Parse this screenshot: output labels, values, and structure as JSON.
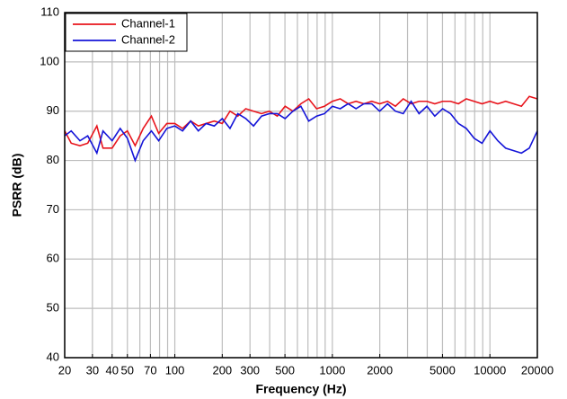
{
  "chart_data": {
    "type": "line",
    "xlabel": "Frequency (Hz)",
    "ylabel": "PSRR (dB)",
    "xscale": "log",
    "grid": true,
    "legend": "upper left",
    "xlim": [
      20,
      20000
    ],
    "ylim": [
      40,
      110
    ],
    "xticks": [
      20,
      30,
      40,
      50,
      70,
      100,
      200,
      300,
      500,
      1000,
      2000,
      5000,
      10000,
      20000
    ],
    "xgrid": [
      20,
      30,
      40,
      50,
      60,
      70,
      80,
      90,
      100,
      200,
      300,
      400,
      500,
      600,
      700,
      800,
      900,
      1000,
      2000,
      3000,
      4000,
      5000,
      6000,
      7000,
      8000,
      9000,
      10000,
      20000
    ],
    "yticks": [
      40,
      50,
      60,
      70,
      80,
      90,
      100,
      110
    ],
    "x": [
      20,
      22,
      25,
      28,
      32,
      35,
      40,
      45,
      50,
      56,
      63,
      71,
      79,
      89,
      100,
      112,
      126,
      141,
      158,
      178,
      200,
      224,
      251,
      282,
      316,
      355,
      398,
      447,
      501,
      562,
      631,
      708,
      794,
      891,
      1000,
      1122,
      1259,
      1413,
      1585,
      1778,
      1995,
      2239,
      2512,
      2818,
      3162,
      3548,
      3981,
      4467,
      5012,
      5623,
      6310,
      7079,
      7943,
      8913,
      10000,
      11220,
      12589,
      14125,
      15849,
      17783,
      20000
    ],
    "series": [
      {
        "name": "Channel-1",
        "color": "#e8141c",
        "values": [
          86,
          83.5,
          83,
          83.5,
          87,
          82.5,
          82.5,
          85,
          86,
          83,
          86.5,
          89,
          85.5,
          87.5,
          87.5,
          86.5,
          88,
          87,
          87.5,
          88,
          87.5,
          90,
          89,
          90.5,
          90,
          89.5,
          90,
          89,
          91,
          90,
          91.5,
          92.5,
          90.5,
          91,
          92,
          92.5,
          91.5,
          92,
          91.5,
          92,
          91.5,
          92,
          91,
          92.5,
          91.5,
          92,
          92,
          91.5,
          92,
          92,
          91.5,
          92.5,
          92,
          91.5,
          92,
          91.5,
          92,
          91.5,
          91,
          93,
          92.5
        ]
      },
      {
        "name": "Channel-2",
        "color": "#1414d8",
        "values": [
          85,
          86,
          84,
          85,
          81.5,
          86,
          84,
          86.5,
          84.5,
          80,
          84,
          86,
          84,
          86.5,
          87,
          86,
          88,
          86,
          87.5,
          87,
          88.5,
          86.5,
          89.5,
          88.5,
          87,
          89,
          89.5,
          89.5,
          88.5,
          90,
          91,
          88,
          89,
          89.5,
          91,
          90.5,
          91.5,
          90.5,
          91.5,
          91.5,
          90,
          91.5,
          90,
          89.5,
          92,
          89.5,
          91,
          89,
          90.5,
          89.5,
          87.5,
          86.5,
          84.5,
          83.5,
          86,
          84,
          82.5,
          82,
          81.5,
          82.5,
          86
        ]
      }
    ]
  }
}
